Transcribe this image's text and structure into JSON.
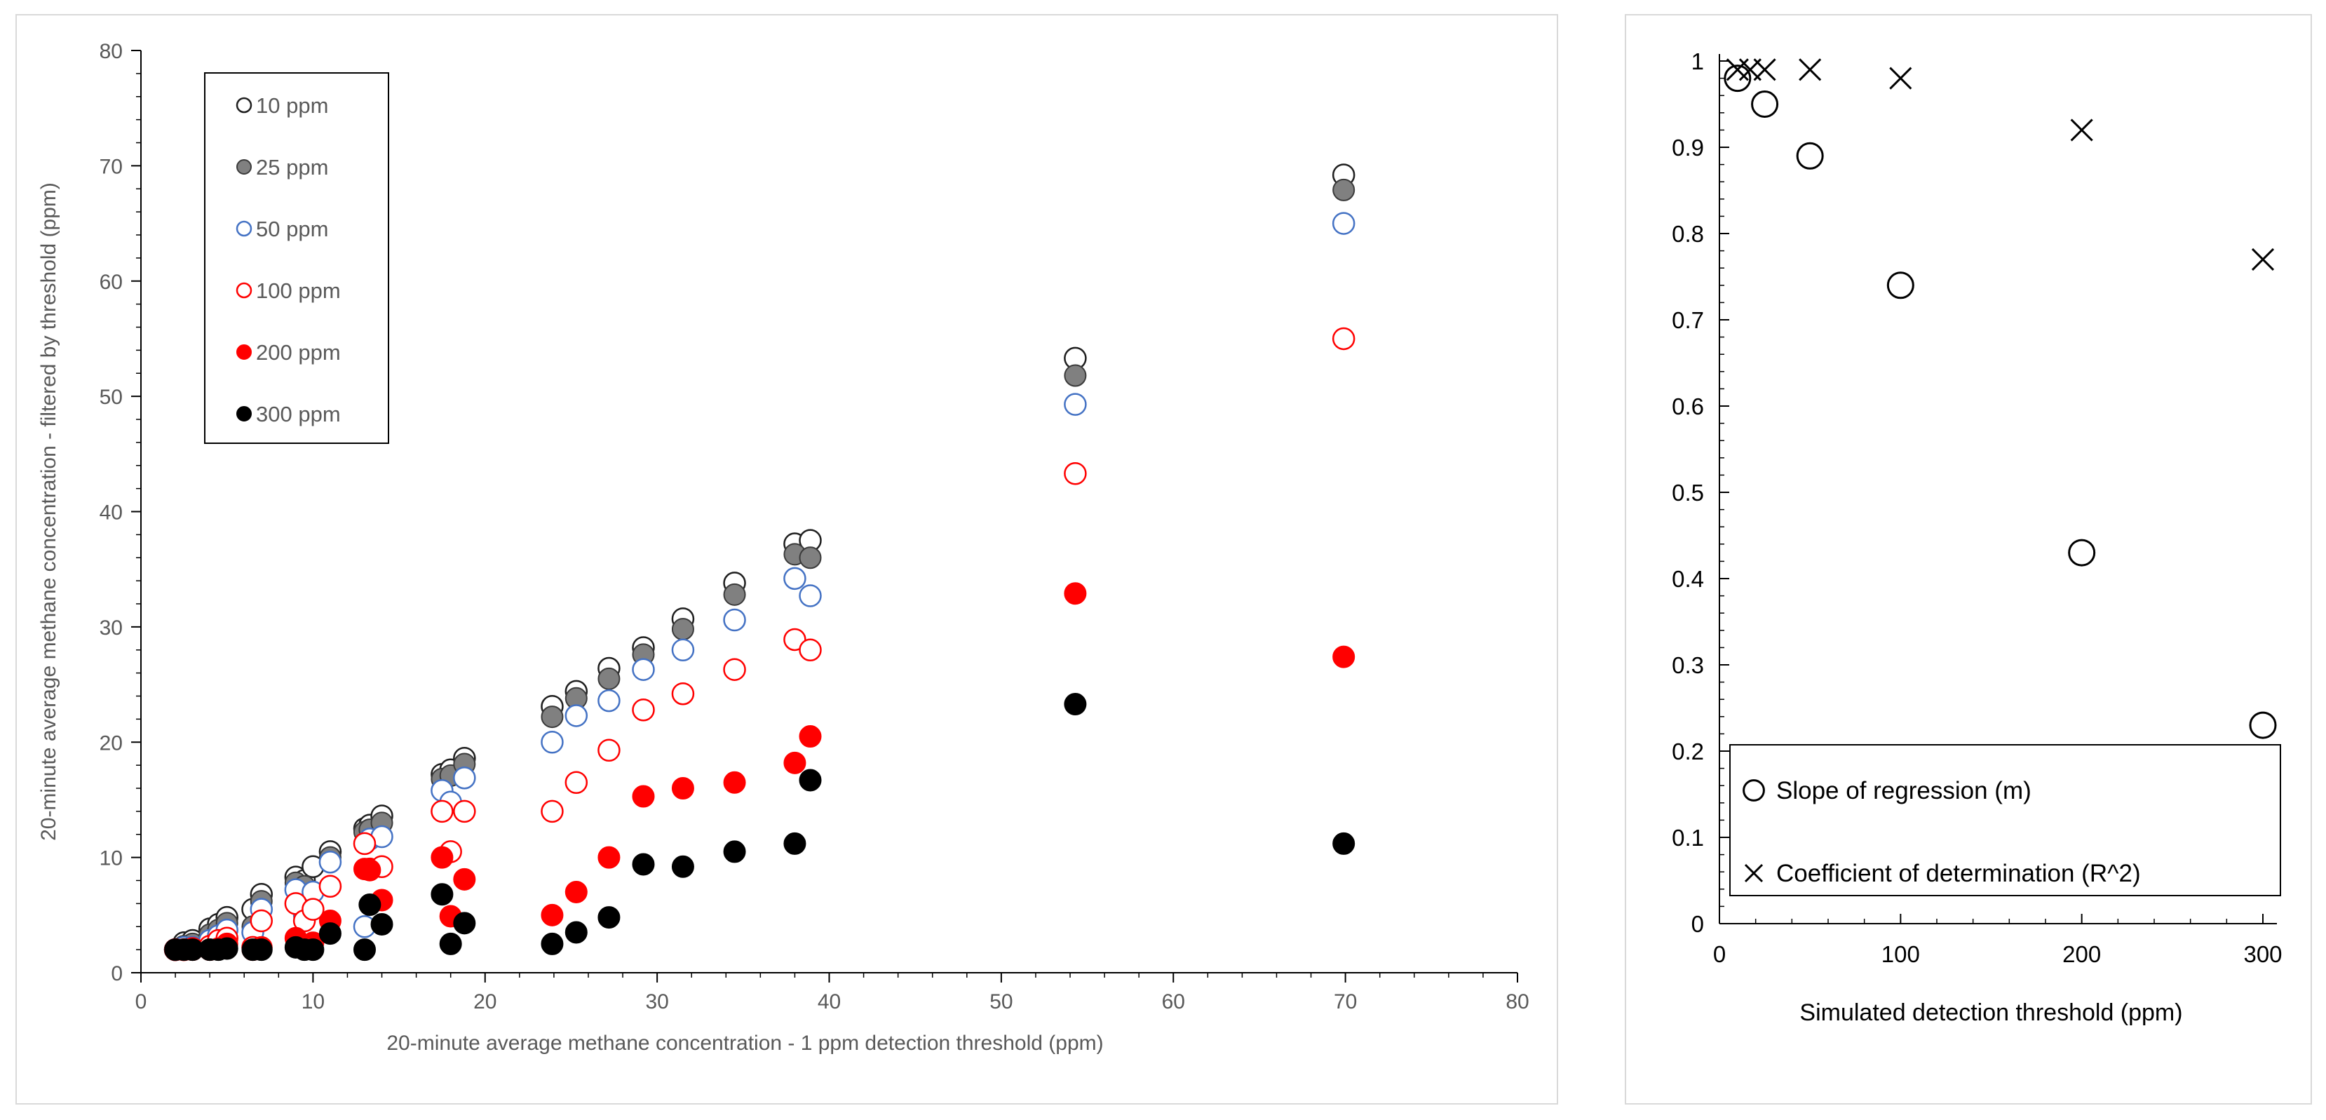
{
  "chart_data": [
    {
      "type": "scatter",
      "title": "",
      "xlabel": "20-minute average methane concentration - 1 ppm detection threshold (ppm)",
      "ylabel": "20-minute average methane concentration - filtered by threshold (ppm)",
      "xlim": [
        0,
        80
      ],
      "ylim": [
        0,
        80
      ],
      "xticks": [
        0,
        10,
        20,
        30,
        40,
        50,
        60,
        70,
        80
      ],
      "yticks": [
        0,
        10,
        20,
        30,
        40,
        50,
        60,
        70,
        80
      ],
      "legend_position": "top-left",
      "x": [
        2,
        2.5,
        3,
        4,
        4.5,
        5,
        6.5,
        7,
        9,
        9.5,
        10,
        11,
        13,
        13.3,
        14,
        17.5,
        18,
        18.8,
        23.9,
        25.3,
        27.2,
        29.2,
        31.5,
        34.5,
        38,
        38.9,
        54.3,
        69.9
      ],
      "series": [
        {
          "name": "10 ppm",
          "marker": "open-circle",
          "color": "#1f1f1f",
          "values": [
            2,
            2.6,
            2.8,
            3.8,
            4.2,
            4.8,
            5.5,
            6.8,
            8.3,
            8,
            9.2,
            10.5,
            12.5,
            12.8,
            13.6,
            17.2,
            17.6,
            18.6,
            23.1,
            24.4,
            26.4,
            28.2,
            30.7,
            33.8,
            37.2,
            37.5,
            53.3,
            69.2
          ]
        },
        {
          "name": "25 ppm",
          "marker": "filled-circle",
          "color": "#808080",
          "values": [
            2,
            2.3,
            2.5,
            3.3,
            3.7,
            4.3,
            4,
            6.2,
            7.8,
            7.5,
            7,
            10,
            12.2,
            12.4,
            13,
            16.8,
            17.1,
            18.1,
            22.2,
            23.8,
            25.5,
            27.6,
            29.8,
            32.8,
            36.3,
            36,
            51.8,
            67.9
          ]
        },
        {
          "name": "50 ppm",
          "marker": "open-circle",
          "color": "#4472c4",
          "values": [
            2,
            2.2,
            2.2,
            2.8,
            3.2,
            3.7,
            3.5,
            5.5,
            7.2,
            5,
            7,
            9.6,
            4,
            11.6,
            11.8,
            15.8,
            14.8,
            16.9,
            20,
            22.3,
            23.6,
            26.3,
            28,
            30.6,
            34.2,
            32.7,
            49.3,
            65
          ]
        },
        {
          "name": "100 ppm",
          "marker": "open-circle",
          "color": "#ff0000",
          "values": [
            2,
            2,
            2.1,
            2.3,
            2.8,
            3,
            2.2,
            4.5,
            6,
            4.5,
            5.5,
            7.5,
            11.2,
            9,
            9.2,
            14,
            10.5,
            14,
            14,
            16.5,
            19.3,
            22.8,
            24.2,
            26.3,
            28.9,
            28,
            43.3,
            55
          ]
        },
        {
          "name": "200 ppm",
          "marker": "filled-circle",
          "color": "#ff0000",
          "values": [
            2,
            2,
            2,
            2,
            2.1,
            2.5,
            2,
            2.2,
            3,
            2.3,
            2.6,
            4.5,
            9,
            8.9,
            6.3,
            10,
            4.9,
            8.1,
            5,
            7,
            10,
            15.3,
            16,
            16.5,
            18.2,
            20.5,
            32.9,
            27.4
          ]
        },
        {
          "name": "300 ppm",
          "marker": "filled-circle",
          "color": "#000000",
          "values": [
            2,
            2,
            2,
            2,
            2,
            2.1,
            2,
            2,
            2.2,
            2,
            2,
            3.4,
            2,
            5.9,
            4.2,
            6.8,
            2.5,
            4.3,
            2.5,
            3.5,
            4.8,
            9.4,
            9.2,
            10.5,
            11.2,
            16.7,
            23.3,
            11.2
          ]
        }
      ]
    },
    {
      "type": "scatter",
      "title": "",
      "xlabel": "Simulated detection threshold (ppm)",
      "ylabel": "",
      "xlim": [
        0,
        300
      ],
      "ylim": [
        0,
        1
      ],
      "xticks": [
        0,
        100,
        200,
        300
      ],
      "yticks": [
        0,
        0.1,
        0.2,
        0.3,
        0.4,
        0.5,
        0.6,
        0.7,
        0.8,
        0.9,
        1
      ],
      "legend_position": "bottom-right",
      "x": [
        10,
        25,
        50,
        100,
        200,
        300
      ],
      "series": [
        {
          "name": "Slope of regression (m)",
          "marker": "circle",
          "color": "#000000",
          "x": [
            10,
            25,
            50,
            100,
            200,
            300
          ],
          "values": [
            0.98,
            0.95,
            0.89,
            0.74,
            0.43,
            0.23
          ]
        },
        {
          "name": "Coefficient of determination (R^2)",
          "marker": "x",
          "color": "#000000",
          "x": [
            10,
            17,
            25,
            50,
            100,
            200,
            300
          ],
          "values": [
            0.99,
            0.99,
            0.99,
            0.99,
            0.98,
            0.92,
            0.77
          ]
        }
      ]
    }
  ]
}
